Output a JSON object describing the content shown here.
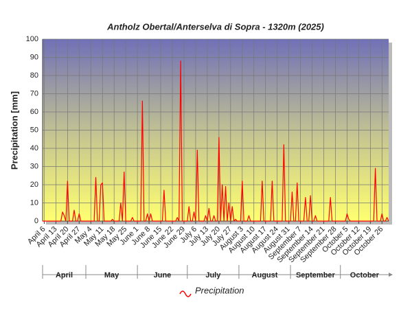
{
  "chart_data": {
    "type": "line",
    "title": "Antholz Obertal/Anterselva di Sopra - 1320m (2025)",
    "y_label": "Precipitation [mm]",
    "ylim": [
      0,
      100
    ],
    "yticks": [
      0,
      10,
      20,
      30,
      40,
      50,
      60,
      70,
      80,
      90,
      100
    ],
    "grid": true,
    "legend_position": "bottom",
    "month_labels": [
      "April",
      "May",
      "June",
      "July",
      "August",
      "September",
      "October"
    ],
    "categories": [
      null,
      "April 6",
      null,
      null,
      null,
      null,
      null,
      null,
      "April 13",
      null,
      null,
      null,
      null,
      null,
      null,
      "April 20",
      null,
      null,
      null,
      null,
      null,
      null,
      "April 27",
      null,
      null,
      null,
      null,
      null,
      null,
      "May 4",
      null,
      null,
      null,
      null,
      null,
      null,
      "May 11",
      null,
      null,
      null,
      null,
      null,
      null,
      "May 18",
      null,
      null,
      null,
      null,
      null,
      null,
      "May 25",
      null,
      null,
      null,
      null,
      null,
      null,
      "June 1",
      null,
      null,
      null,
      null,
      null,
      null,
      "June 8",
      null,
      null,
      null,
      null,
      null,
      null,
      "June 15",
      null,
      null,
      null,
      null,
      null,
      null,
      "June 22",
      null,
      null,
      null,
      null,
      null,
      null,
      "June 29",
      null,
      null,
      null,
      null,
      null,
      null,
      "July 6",
      null,
      null,
      null,
      null,
      null,
      null,
      "July 13",
      null,
      null,
      null,
      null,
      null,
      null,
      "July 20",
      null,
      null,
      null,
      null,
      null,
      null,
      "July 27",
      null,
      null,
      null,
      null,
      null,
      null,
      "August 3",
      null,
      null,
      null,
      null,
      null,
      null,
      "August 10",
      null,
      null,
      null,
      null,
      null,
      null,
      "August 17",
      null,
      null,
      null,
      null,
      null,
      null,
      "August 24",
      null,
      null,
      null,
      null,
      null,
      null,
      "August 31",
      null,
      null,
      null,
      null,
      null,
      null,
      "September 7",
      null,
      null,
      null,
      null,
      null,
      null,
      "September 14",
      null,
      null,
      null,
      null,
      null,
      null,
      "September 21",
      null,
      null,
      null,
      null,
      null,
      null,
      "September 28",
      null,
      null,
      null,
      null,
      null,
      null,
      "October 5",
      null,
      null,
      null,
      null,
      null,
      null,
      "October 12",
      null,
      null,
      null,
      null,
      null,
      null,
      "October 19",
      null,
      null,
      null,
      null,
      null,
      null,
      "October 26",
      null,
      null,
      null,
      null
    ],
    "series": [
      {
        "name": "Precipitation",
        "color": "#ff0000",
        "values": [
          0,
          0,
          0,
          0,
          0,
          0,
          0,
          0,
          0,
          0,
          0,
          0,
          5,
          3,
          0,
          22,
          0,
          0,
          0,
          6,
          0,
          0,
          4,
          0,
          0,
          0,
          0,
          0,
          0,
          0,
          0,
          0,
          24,
          0,
          0,
          20,
          21,
          0,
          0,
          0,
          0,
          0,
          1,
          0,
          0,
          0,
          0,
          10,
          0,
          27,
          0,
          0,
          0,
          0,
          2,
          0,
          0,
          0,
          0,
          0,
          66,
          0,
          0,
          4,
          0,
          4,
          0,
          0,
          0,
          0,
          0,
          0,
          0,
          17,
          0,
          0,
          0,
          0,
          0,
          0,
          0,
          2,
          0,
          88,
          0,
          0,
          0,
          0,
          8,
          0,
          0,
          5,
          0,
          39,
          0,
          0,
          0,
          0,
          3,
          0,
          7,
          0,
          0,
          3,
          0,
          0,
          46,
          0,
          20,
          0,
          19,
          0,
          10,
          0,
          8,
          0,
          1,
          0,
          0,
          0,
          22,
          0,
          0,
          0,
          3,
          0,
          0,
          0,
          0,
          0,
          0,
          0,
          22,
          0,
          0,
          0,
          0,
          0,
          22,
          0,
          0,
          0,
          0,
          0,
          0,
          42,
          0,
          0,
          0,
          0,
          16,
          0,
          0,
          21,
          0,
          0,
          0,
          0,
          13,
          0,
          0,
          14,
          0,
          0,
          3,
          0,
          0,
          0,
          0,
          0,
          0,
          0,
          0,
          13,
          0,
          0,
          0,
          0,
          0,
          0,
          0,
          0,
          0,
          4,
          1,
          0,
          0,
          0,
          0,
          0,
          0,
          0,
          0,
          0,
          0,
          0,
          0,
          0,
          0,
          0,
          29,
          0,
          0,
          0,
          4,
          0,
          0,
          2,
          0
        ]
      }
    ]
  }
}
